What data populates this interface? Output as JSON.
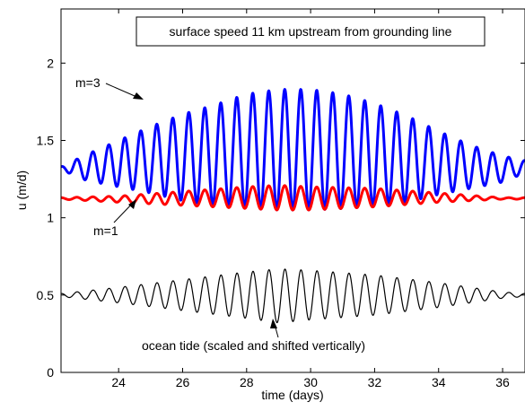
{
  "chart_data": {
    "type": "line",
    "title": "surface speed 11 km upstream from grounding line",
    "xlabel": "time (days)",
    "ylabel": "u (m/d)",
    "xlim": [
      22.2,
      36.7
    ],
    "ylim": [
      0,
      2.35
    ],
    "x_ticks": [
      24,
      26,
      28,
      30,
      32,
      34,
      36
    ],
    "y_ticks": [
      0,
      0.5,
      1,
      1.5,
      2
    ],
    "y_tick_labels": [
      "0",
      "0.5",
      "1",
      "1.5",
      "2"
    ],
    "grid": false,
    "series": [
      {
        "name": "m=3",
        "color": "#0000ff",
        "period_days": 0.5,
        "envelope": {
          "t": [
            22.2,
            23.0,
            24.0,
            25.0,
            26.0,
            27.0,
            28.0,
            29.0,
            30.0,
            31.0,
            32.0,
            33.0,
            34.0,
            35.0,
            36.0,
            36.7
          ],
          "max": [
            1.33,
            1.41,
            1.5,
            1.59,
            1.67,
            1.73,
            1.8,
            1.83,
            1.83,
            1.8,
            1.74,
            1.66,
            1.56,
            1.47,
            1.4,
            1.37
          ],
          "min": [
            1.31,
            1.24,
            1.2,
            1.16,
            1.11,
            1.08,
            1.06,
            1.05,
            1.05,
            1.06,
            1.08,
            1.1,
            1.15,
            1.19,
            1.23,
            1.29
          ]
        }
      },
      {
        "name": "m=1",
        "color": "#ff0000",
        "period_days": 0.5,
        "envelope": {
          "t": [
            22.2,
            24.0,
            26.0,
            28.0,
            29.0,
            30.0,
            32.0,
            34.0,
            36.0,
            36.7
          ],
          "max": [
            1.13,
            1.14,
            1.17,
            1.2,
            1.21,
            1.2,
            1.19,
            1.16,
            1.13,
            1.13
          ],
          "min": [
            1.12,
            1.1,
            1.08,
            1.06,
            1.05,
            1.05,
            1.07,
            1.1,
            1.12,
            1.12
          ]
        }
      },
      {
        "name": "ocean tide (scaled and shifted vertically)",
        "color": "#000000",
        "period_days": 0.5,
        "envelope": {
          "t": [
            22.2,
            24.0,
            26.0,
            28.0,
            29.0,
            30.0,
            32.0,
            34.0,
            36.0,
            36.7
          ],
          "max": [
            0.51,
            0.55,
            0.6,
            0.65,
            0.67,
            0.66,
            0.63,
            0.58,
            0.52,
            0.51
          ],
          "min": [
            0.49,
            0.45,
            0.4,
            0.35,
            0.32,
            0.34,
            0.37,
            0.42,
            0.48,
            0.49
          ]
        }
      }
    ],
    "annotations": [
      {
        "text": "m=3",
        "arrow_to": [
          24.6,
          1.61
        ]
      },
      {
        "text": "m=1",
        "arrow_to": [
          24.9,
          1.07
        ]
      },
      {
        "text": "ocean tide (scaled and shifted vertically)",
        "arrow_to": [
          28.9,
          0.32
        ]
      }
    ]
  }
}
